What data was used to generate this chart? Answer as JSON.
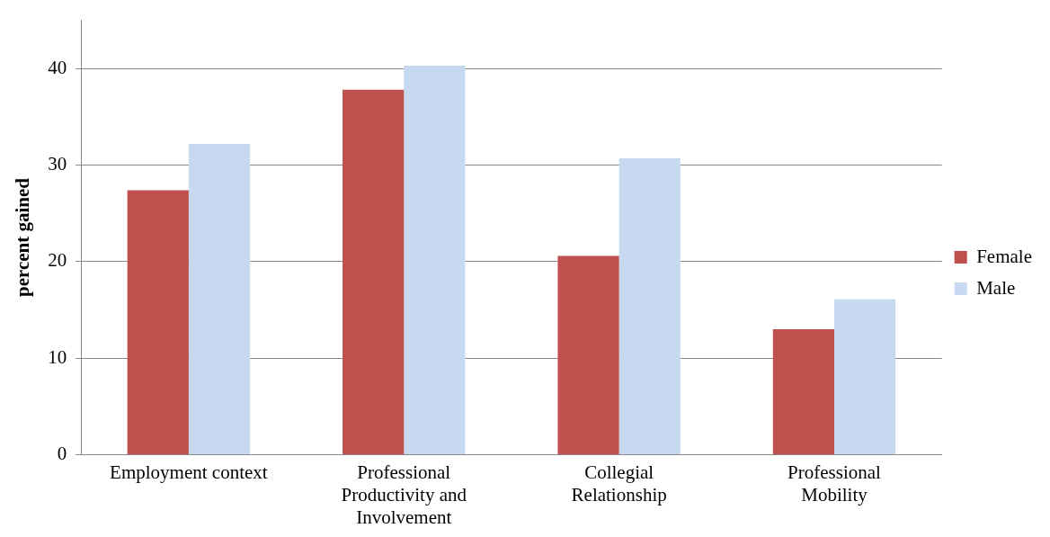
{
  "chart_data": {
    "type": "bar",
    "ylabel": "percent gained",
    "categories": [
      "Employment context",
      "Professional Productivity and Involvement",
      "Collegial Relationship",
      "Professional Mobility"
    ],
    "series": [
      {
        "name": "Female",
        "color": "#c0504d",
        "values": [
          27.4,
          37.8,
          20.6,
          13.0
        ]
      },
      {
        "name": "Male",
        "color": "#c6d9f1",
        "values": [
          32.2,
          40.3,
          30.7,
          16.1
        ]
      }
    ],
    "ylim": [
      0,
      45
    ],
    "yticks": [
      0,
      10,
      20,
      30,
      40
    ],
    "grid": "y",
    "legend": "right"
  }
}
